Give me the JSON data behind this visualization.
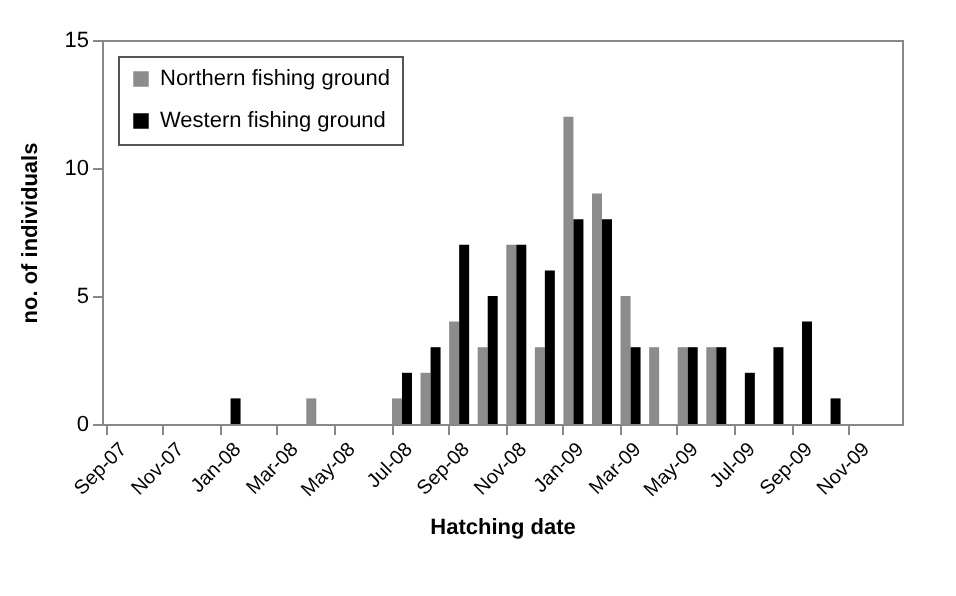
{
  "chart_data": {
    "type": "bar",
    "xlabel": "Hatching date",
    "ylabel": "no. of individuals",
    "categories": [
      "Sep-07",
      null,
      "Nov-07",
      null,
      "Jan-08",
      null,
      "Mar-08",
      null,
      "May-08",
      null,
      "Jul-08",
      null,
      "Sep-08",
      null,
      "Nov-08",
      null,
      "Jan-09",
      null,
      "Mar-09",
      null,
      "May-09",
      null,
      "Jul-09",
      null,
      "Sep-09",
      null,
      "Nov-09",
      null
    ],
    "series": [
      {
        "name": "Northern fishing ground",
        "color": "#8c8c8c",
        "values": [
          0,
          0,
          0,
          0,
          0,
          0,
          0,
          1,
          0,
          0,
          1,
          2,
          4,
          3,
          7,
          3,
          12,
          9,
          5,
          3,
          3,
          3,
          0,
          0,
          0,
          0,
          0,
          0
        ]
      },
      {
        "name": "Western fishing ground",
        "color": "#000000",
        "values": [
          0,
          0,
          0,
          0,
          1,
          0,
          0,
          0,
          0,
          0,
          2,
          3,
          7,
          5,
          7,
          6,
          8,
          8,
          3,
          0,
          3,
          3,
          2,
          3,
          4,
          1,
          0,
          0
        ]
      }
    ],
    "ylim": [
      0,
      15
    ],
    "yticks": [
      0,
      5,
      10,
      15
    ],
    "grid": false,
    "legend": "top left"
  }
}
